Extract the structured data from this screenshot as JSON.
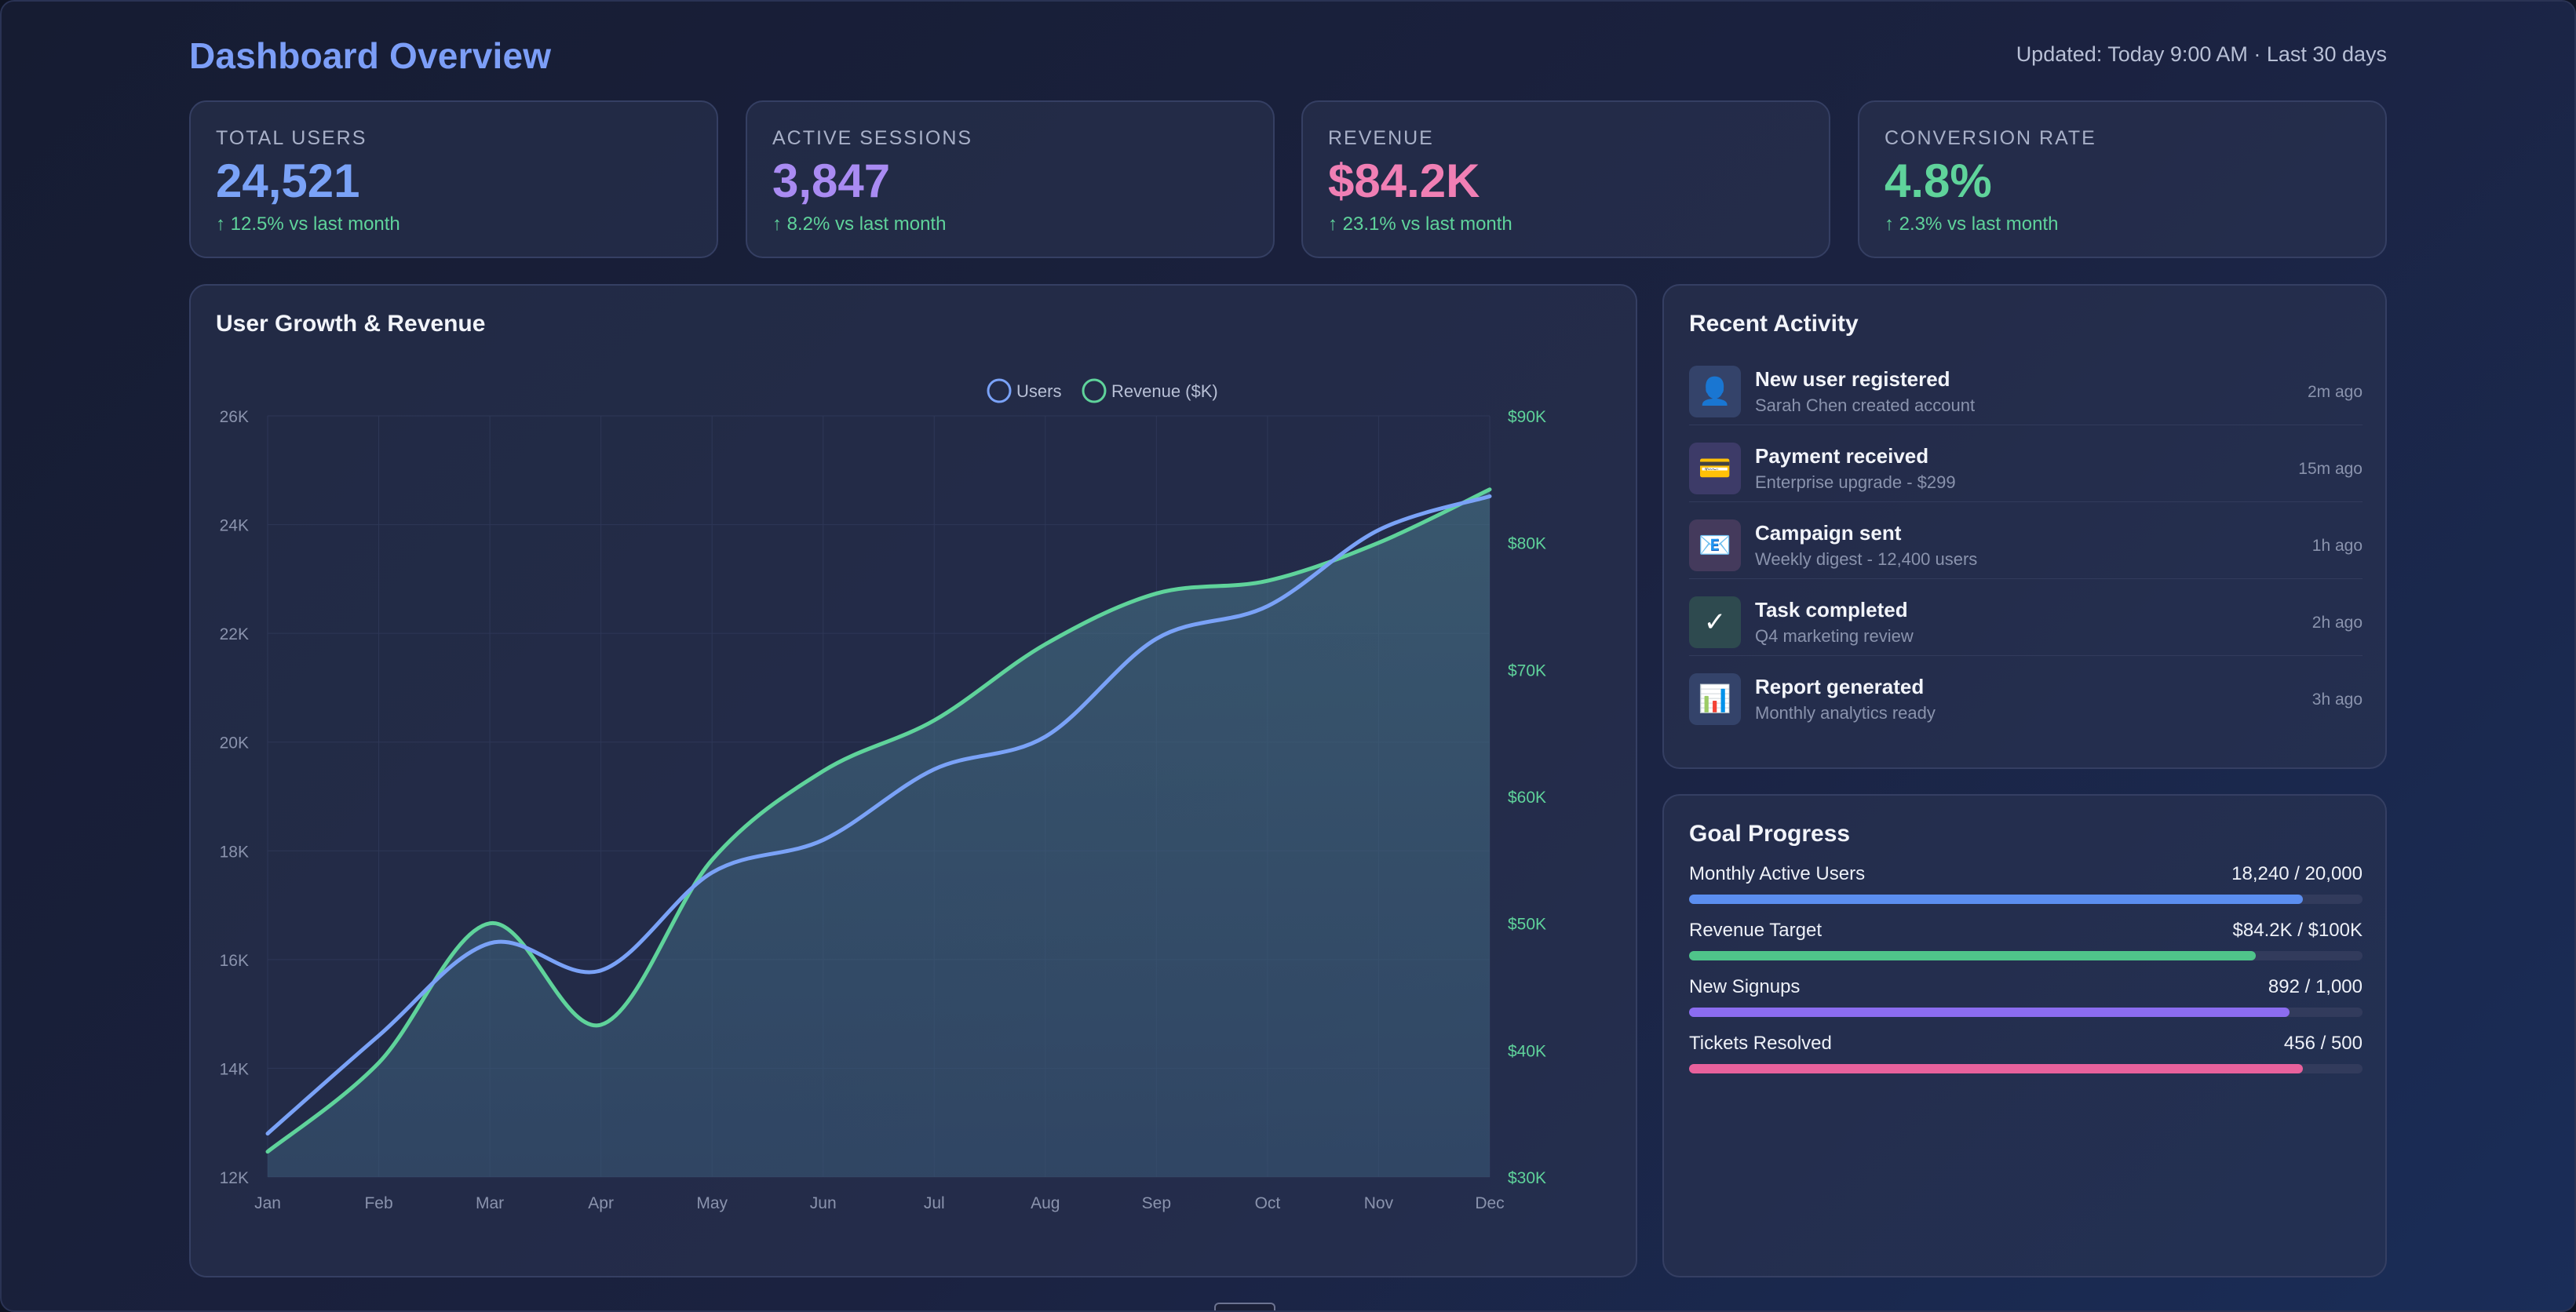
{
  "header": {
    "title": "Dashboard Overview",
    "updated": "Updated: Today 9:00 AM · Last 30 days"
  },
  "stats": [
    {
      "label": "TOTAL USERS",
      "value": "24,521",
      "delta": "↑ 12.5% vs last month",
      "color": "#7aa2f7"
    },
    {
      "label": "ACTIVE SESSIONS",
      "value": "3,847",
      "delta": "↑ 8.2% vs last month",
      "color": "#a98bf2"
    },
    {
      "label": "REVENUE",
      "value": "$84.2K",
      "delta": "↑ 23.1% vs last month",
      "color": "#f07fb4"
    },
    {
      "label": "CONVERSION RATE",
      "value": "4.8%",
      "delta": "↑ 2.3% vs last month",
      "color": "#5fd39b"
    }
  ],
  "chart": {
    "title": "User Growth & Revenue",
    "legend": [
      "Users",
      "Revenue ($K)"
    ]
  },
  "chart_data": {
    "type": "line",
    "title": "User Growth & Revenue",
    "categories": [
      "Jan",
      "Feb",
      "Mar",
      "Apr",
      "May",
      "Jun",
      "Jul",
      "Aug",
      "Sep",
      "Oct",
      "Nov",
      "Dec"
    ],
    "series": [
      {
        "name": "Users",
        "axis": "left",
        "color": "#7aa2f7",
        "values": [
          12800,
          14600,
          16300,
          15800,
          17600,
          18200,
          19500,
          20100,
          21900,
          22500,
          23900,
          24521
        ]
      },
      {
        "name": "Revenue ($K)",
        "axis": "right",
        "color": "#5fd39b",
        "fill": true,
        "values": [
          32,
          39,
          50,
          42,
          55,
          62,
          66,
          72,
          76,
          77,
          80,
          84.2
        ]
      }
    ],
    "y_left": {
      "min": 12000,
      "max": 26000,
      "ticks": [
        "12K",
        "14K",
        "16K",
        "18K",
        "20K",
        "22K",
        "24K",
        "26K"
      ]
    },
    "y_right": {
      "min": 30,
      "max": 90,
      "ticks": [
        "$30K",
        "$40K",
        "$50K",
        "$60K",
        "$70K",
        "$80K",
        "$90K"
      ]
    },
    "grid": true,
    "legend_position": "top-center"
  },
  "activity": {
    "title": "Recent Activity",
    "items": [
      {
        "icon": "user-icon",
        "glyph": "👤",
        "bg": "#34436a",
        "title": "New user registered",
        "sub": "Sarah Chen created account",
        "time": "2m ago"
      },
      {
        "icon": "credit-card-icon",
        "glyph": "💳",
        "bg": "#3d3b68",
        "title": "Payment received",
        "sub": "Enterprise upgrade - $299",
        "time": "15m ago"
      },
      {
        "icon": "mail-icon",
        "glyph": "📧",
        "bg": "#443a5c",
        "title": "Campaign sent",
        "sub": "Weekly digest - 12,400 users",
        "time": "1h ago"
      },
      {
        "icon": "check-icon",
        "glyph": "✓",
        "bg": "#2e4a4f",
        "title": "Task completed",
        "sub": "Q4 marketing review",
        "time": "2h ago"
      },
      {
        "icon": "bar-chart-icon",
        "glyph": "📊",
        "bg": "#34436a",
        "title": "Report generated",
        "sub": "Monthly analytics ready",
        "time": "3h ago"
      }
    ]
  },
  "goals": {
    "title": "Goal Progress",
    "items": [
      {
        "label": "Monthly Active Users",
        "value": "18,240 / 20,000",
        "progress": 0.912,
        "color": "#5b8ef0"
      },
      {
        "label": "Revenue Target",
        "value": "$84.2K / $100K",
        "progress": 0.842,
        "color": "#4fc48a"
      },
      {
        "label": "New Signups",
        "value": "892 / 1,000",
        "progress": 0.892,
        "color": "#8b6cf0"
      },
      {
        "label": "Tickets Resolved",
        "value": "456 / 500",
        "progress": 0.912,
        "color": "#e8619c"
      }
    ]
  }
}
